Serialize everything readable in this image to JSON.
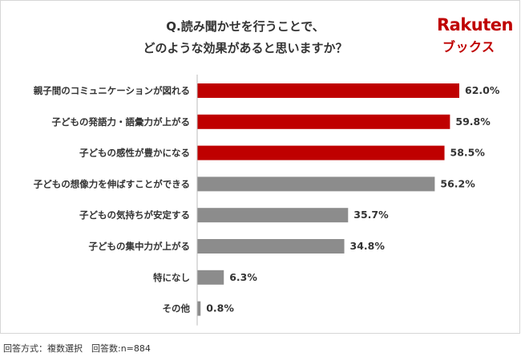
{
  "title_lines": [
    "Q.読み聞かせを行うことで、",
    "どのような効果があると思いますか？"
  ],
  "logo": {
    "top": "Rakuten",
    "bottom": "ブックス"
  },
  "footnote": "回答方式：複数選択　回答数:n=884",
  "colors": {
    "highlight": "#bf0000",
    "normal": "#8c8c8c",
    "text": "#333333",
    "axis": "#bbbbbb"
  },
  "chart_data": {
    "type": "bar",
    "orientation": "horizontal",
    "title": "Q.読み聞かせを行うことで、どのような効果があると思いますか？",
    "unit": "%",
    "categories": [
      "親子間のコミュニケーションが図れる",
      "子どもの発語力・語彙力が上がる",
      "子どもの感性が豊かになる",
      "子どもの想像力を伸ばすことができる",
      "子どもの気持ちが安定する",
      "子どもの集中力が上がる",
      "特になし",
      "その他"
    ],
    "values": [
      62.0,
      59.8,
      58.5,
      56.2,
      35.7,
      34.8,
      6.3,
      0.8
    ],
    "value_labels": [
      "62.0%",
      "59.8%",
      "58.5%",
      "56.2%",
      "35.7%",
      "34.8%",
      "6.3%",
      "0.8%"
    ],
    "highlighted": [
      true,
      true,
      true,
      false,
      false,
      false,
      false,
      false
    ],
    "xlim": [
      0,
      62.0
    ],
    "grid": false,
    "legend": "none"
  }
}
